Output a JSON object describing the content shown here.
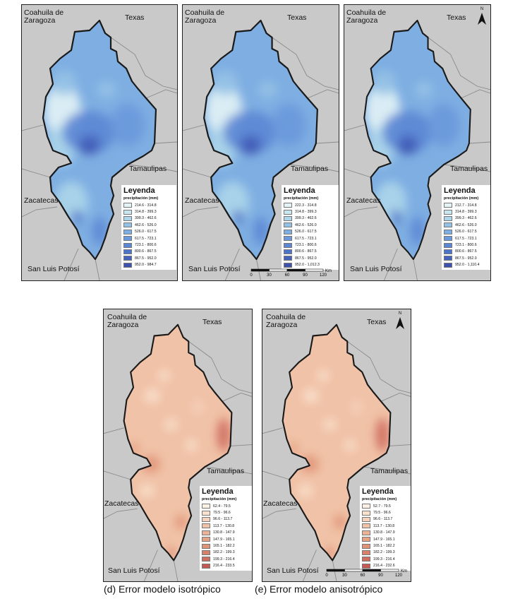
{
  "regions": {
    "coahuila": "Coahuila de Zaragoza",
    "texas": "Texas",
    "tamaulipas": "Tamaulipas",
    "zacatecas": "Zacatecas",
    "slp": "San Luis Potosí"
  },
  "legend": {
    "title": "Leyenda",
    "unit": "precipitación (mm)"
  },
  "north_label": "N",
  "scale": {
    "unit": "Km",
    "ticks": [
      "0",
      "30",
      "60",
      "90",
      "120"
    ]
  },
  "panels": [
    {
      "id": "a",
      "theme": "blue",
      "classes": [
        "214.6 - 314.8",
        "314.8 - 399.3",
        "399.3 - 462.6",
        "462.6 - 526.0",
        "526.0 - 617.5",
        "617.5 - 723.1",
        "723.1 - 800.6",
        "800.6 - 867.5",
        "867.5 - 952.0",
        "952.0 - 984.7"
      ]
    },
    {
      "id": "b",
      "theme": "blue",
      "classes": [
        "222.3 - 314.8",
        "314.8 - 399.3",
        "399.3 - 462.6",
        "462.6 - 526.0",
        "526.0 - 617.5",
        "617.5 - 723.1",
        "723.1 - 800.6",
        "800.6 - 867.5",
        "867.5 - 952.0",
        "952.0 - 1,012.3"
      ]
    },
    {
      "id": "c",
      "theme": "blue",
      "classes": [
        "212.7 - 314.8",
        "314.8 - 399.3",
        "399.3 - 462.6",
        "462.6 - 526.0",
        "526.0 - 617.5",
        "617.5 - 723.1",
        "723.1 - 800.6",
        "800.6 - 867.5",
        "867.5 - 952.0",
        "952.0 - 1,110.4"
      ]
    },
    {
      "id": "d",
      "theme": "red",
      "classes": [
        "62.4 - 79.5",
        "79.5 - 96.6",
        "96.6 - 113.7",
        "113.7 - 130.8",
        "130.8 - 147.9",
        "147.9 - 165.1",
        "165.1 - 182.2",
        "182.2 - 199.3",
        "199.3 - 216.4",
        "216.4 - 233.5"
      ]
    },
    {
      "id": "e",
      "theme": "red",
      "classes": [
        "52.7 - 79.5",
        "79.5 - 96.6",
        "96.6 - 113.7",
        "113.7 - 130.8",
        "130.8 - 147.9",
        "147.9 - 165.1",
        "165.1 - 182.2",
        "182.2 - 199.3",
        "199.3 - 216.4",
        "216.4 - 232.6"
      ]
    }
  ],
  "colors": {
    "blue": [
      "#e4f4f6",
      "#c8e6ee",
      "#add6ea",
      "#93c1e6",
      "#7eaee2",
      "#6a99dc",
      "#5b86d4",
      "#4e74c9",
      "#4563bd",
      "#3c52ad"
    ],
    "red": [
      "#fdf1e6",
      "#f9e1ce",
      "#f5d2bb",
      "#f0c2a7",
      "#ebb296",
      "#e6a285",
      "#e09277",
      "#d8806a",
      "#cf6d5e",
      "#c55a52"
    ]
  },
  "captions": {
    "d": "(d) Error modelo isotrópico",
    "e": "(e) Error modelo anisotrópico"
  }
}
